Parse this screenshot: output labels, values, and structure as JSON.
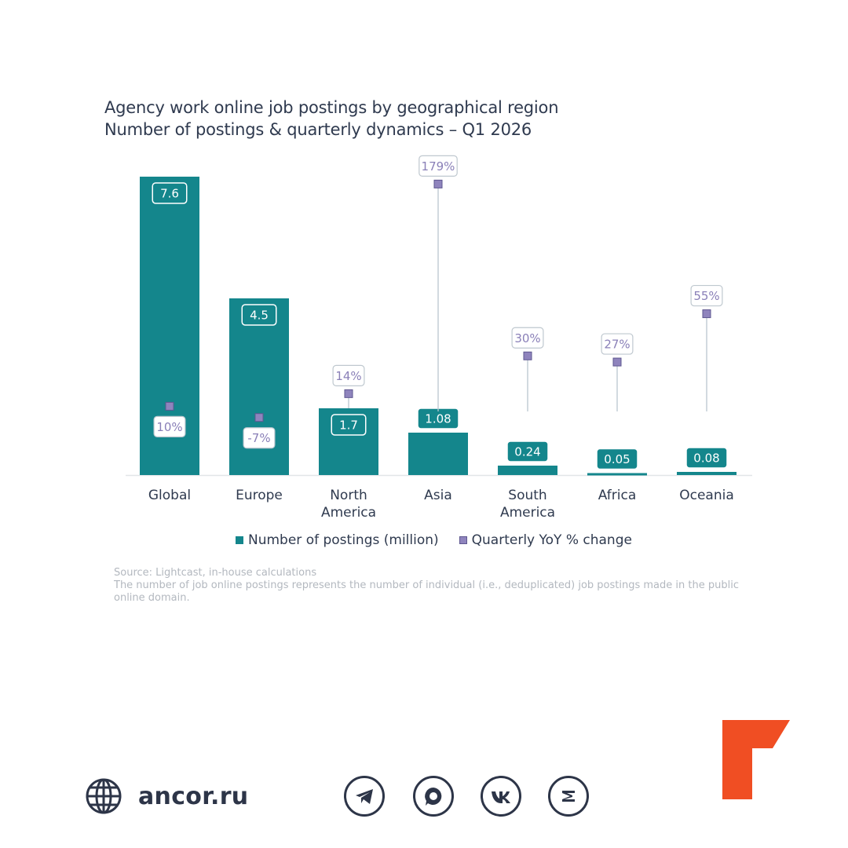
{
  "title": {
    "line1": "Agency work online job postings by geographical region",
    "line2": "Number of postings & quarterly dynamics – Q1 2026"
  },
  "chart_data": {
    "type": "bar",
    "categories": [
      [
        "Global"
      ],
      [
        "Europe"
      ],
      [
        "North",
        "America"
      ],
      [
        "Asia"
      ],
      [
        "South",
        "America"
      ],
      [
        "Africa"
      ],
      [
        "Oceania"
      ]
    ],
    "series": [
      {
        "name": "Number of postings (million)",
        "values": [
          7.6,
          4.5,
          1.7,
          1.08,
          0.24,
          0.05,
          0.08
        ],
        "labels": [
          "7.6",
          "4.5",
          "1.7",
          "1.08",
          "0.24",
          "0.05",
          "0.08"
        ],
        "color": "#14868c"
      },
      {
        "name": "Quarterly YoY % change",
        "values": [
          10,
          -7,
          14,
          179,
          30,
          27,
          55
        ],
        "labels": [
          "10%",
          "-7%",
          "14%",
          "179%",
          "30%",
          "27%",
          "55%"
        ],
        "color": "#8f84bd"
      }
    ],
    "ylim": [
      0,
      7.6
    ],
    "legend_position": "bottom"
  },
  "legend": {
    "bars": "Number of postings (million)",
    "yoy": "Quarterly YoY % change"
  },
  "notes": {
    "source": "Source: Lightcast, in-house calculations",
    "definition": "The number of job online postings represents the number of individual (i.e., deduplicated) job postings made in the public online domain."
  },
  "footer": {
    "site": "ancor.ru",
    "icons": [
      "globe-icon",
      "telegram-icon",
      "max-messenger-icon",
      "vk-icon",
      "dzen-icon"
    ]
  },
  "colors": {
    "bar": "#14868c",
    "marker": "#8f84bd",
    "text": "#2f3a4f",
    "logo": "#f04e23"
  }
}
